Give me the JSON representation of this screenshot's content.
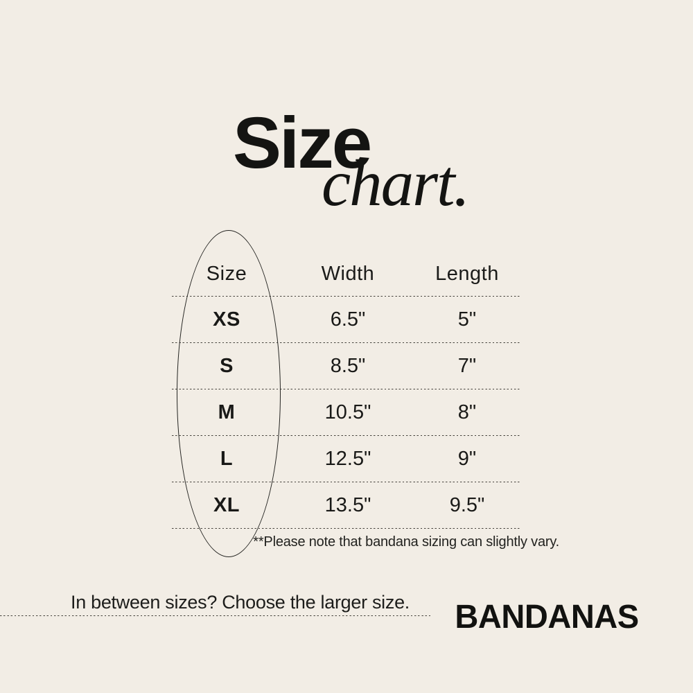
{
  "background": "#f2ede5",
  "ink": "#191917",
  "title": {
    "word": "Size",
    "script": "chart."
  },
  "chart_data": {
    "type": "table",
    "title": "Size chart.",
    "columns": [
      "Size",
      "Width",
      "Length"
    ],
    "rows": [
      [
        "XS",
        "6.5\"",
        "5\""
      ],
      [
        "S",
        "8.5\"",
        "7\""
      ],
      [
        "M",
        "10.5\"",
        "8\""
      ],
      [
        "L",
        "12.5\"",
        "9\""
      ],
      [
        "XL",
        "13.5\"",
        "9.5\""
      ]
    ],
    "note": "**Please note that bandana sizing can slightly vary.",
    "highlight": "ellipse drawn around the Size column"
  },
  "footer": {
    "tip": "In between sizes? Choose the larger size.",
    "product": "BANDANAS"
  }
}
